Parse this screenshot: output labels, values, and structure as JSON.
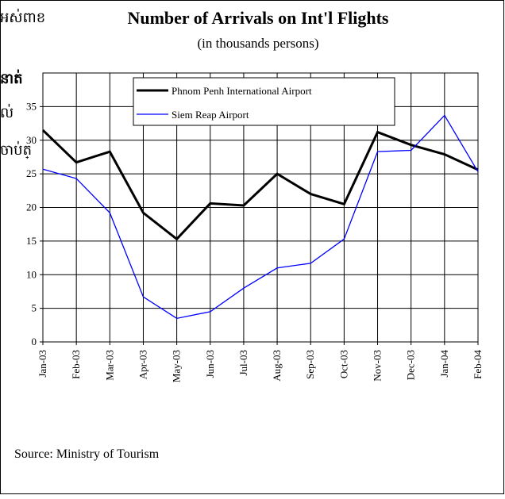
{
  "chart_data": {
    "type": "line",
    "title": "Number of Arrivals on Int'l Flights",
    "subtitle": "(in thousands persons)",
    "source": "Source: Ministry of Tourism",
    "annotations": [
      "អស់ពាខ",
      "នាត់",
      "ល់",
      "ចាប់ត្"
    ],
    "categories": [
      "Jan-03",
      "Feb-03",
      "Mar-03",
      "Apr-03",
      "May-03",
      "Jun-03",
      "Jul-03",
      "Aug-03",
      "Sep-03",
      "Oct-03",
      "Nov-03",
      "Dec-03",
      "Jan-04",
      "Feb-04"
    ],
    "series": [
      {
        "name": "Phnom Penh International Airport",
        "color": "#000000",
        "values": [
          31.5,
          26.7,
          28.3,
          19.2,
          15.3,
          20.6,
          20.3,
          25,
          22,
          20.5,
          31.2,
          29.3,
          27.9,
          25.6
        ]
      },
      {
        "name": "Siem Reap Airport",
        "color": "#0000ff",
        "values": [
          25.7,
          24.3,
          19.2,
          6.7,
          3.5,
          4.5,
          8,
          11,
          11.7,
          15.3,
          28.3,
          28.5,
          33.7,
          25.3
        ]
      }
    ],
    "ylim": [
      0,
      40
    ],
    "yticks": [
      0,
      5,
      10,
      15,
      20,
      25,
      30,
      35
    ],
    "grid": true
  }
}
